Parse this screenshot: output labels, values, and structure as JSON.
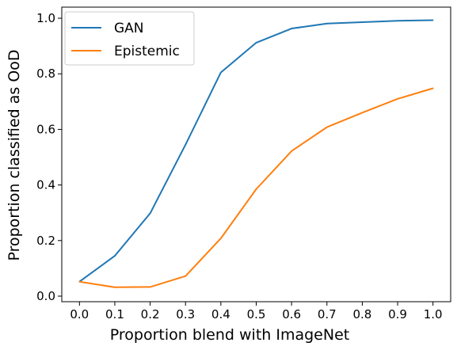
{
  "chart_data": {
    "type": "line",
    "title": "",
    "xlabel": "Proportion blend with ImageNet",
    "ylabel": "Proportion classified as OoD",
    "x": [
      0.0,
      0.1,
      0.2,
      0.3,
      0.4,
      0.5,
      0.6,
      0.7,
      0.8,
      0.9,
      1.0
    ],
    "xticks": [
      "0.0",
      "0.1",
      "0.2",
      "0.3",
      "0.4",
      "0.5",
      "0.6",
      "0.7",
      "0.8",
      "0.9",
      "1.0"
    ],
    "yticks": [
      "0.0",
      "0.2",
      "0.4",
      "0.6",
      "0.8",
      "1.0"
    ],
    "xlim": [
      -0.05,
      1.05
    ],
    "ylim": [
      -0.02,
      1.04
    ],
    "grid": false,
    "legend_position": "top-left",
    "series": [
      {
        "name": "GAN",
        "color": "#1f77b4",
        "values": [
          0.052,
          0.145,
          0.298,
          0.545,
          0.805,
          0.912,
          0.963,
          0.981,
          0.986,
          0.991,
          0.993
        ]
      },
      {
        "name": "Epistemic",
        "color": "#ff7f0e",
        "values": [
          0.052,
          0.032,
          0.033,
          0.072,
          0.208,
          0.385,
          0.522,
          0.608,
          0.66,
          0.71,
          0.748
        ]
      }
    ]
  }
}
